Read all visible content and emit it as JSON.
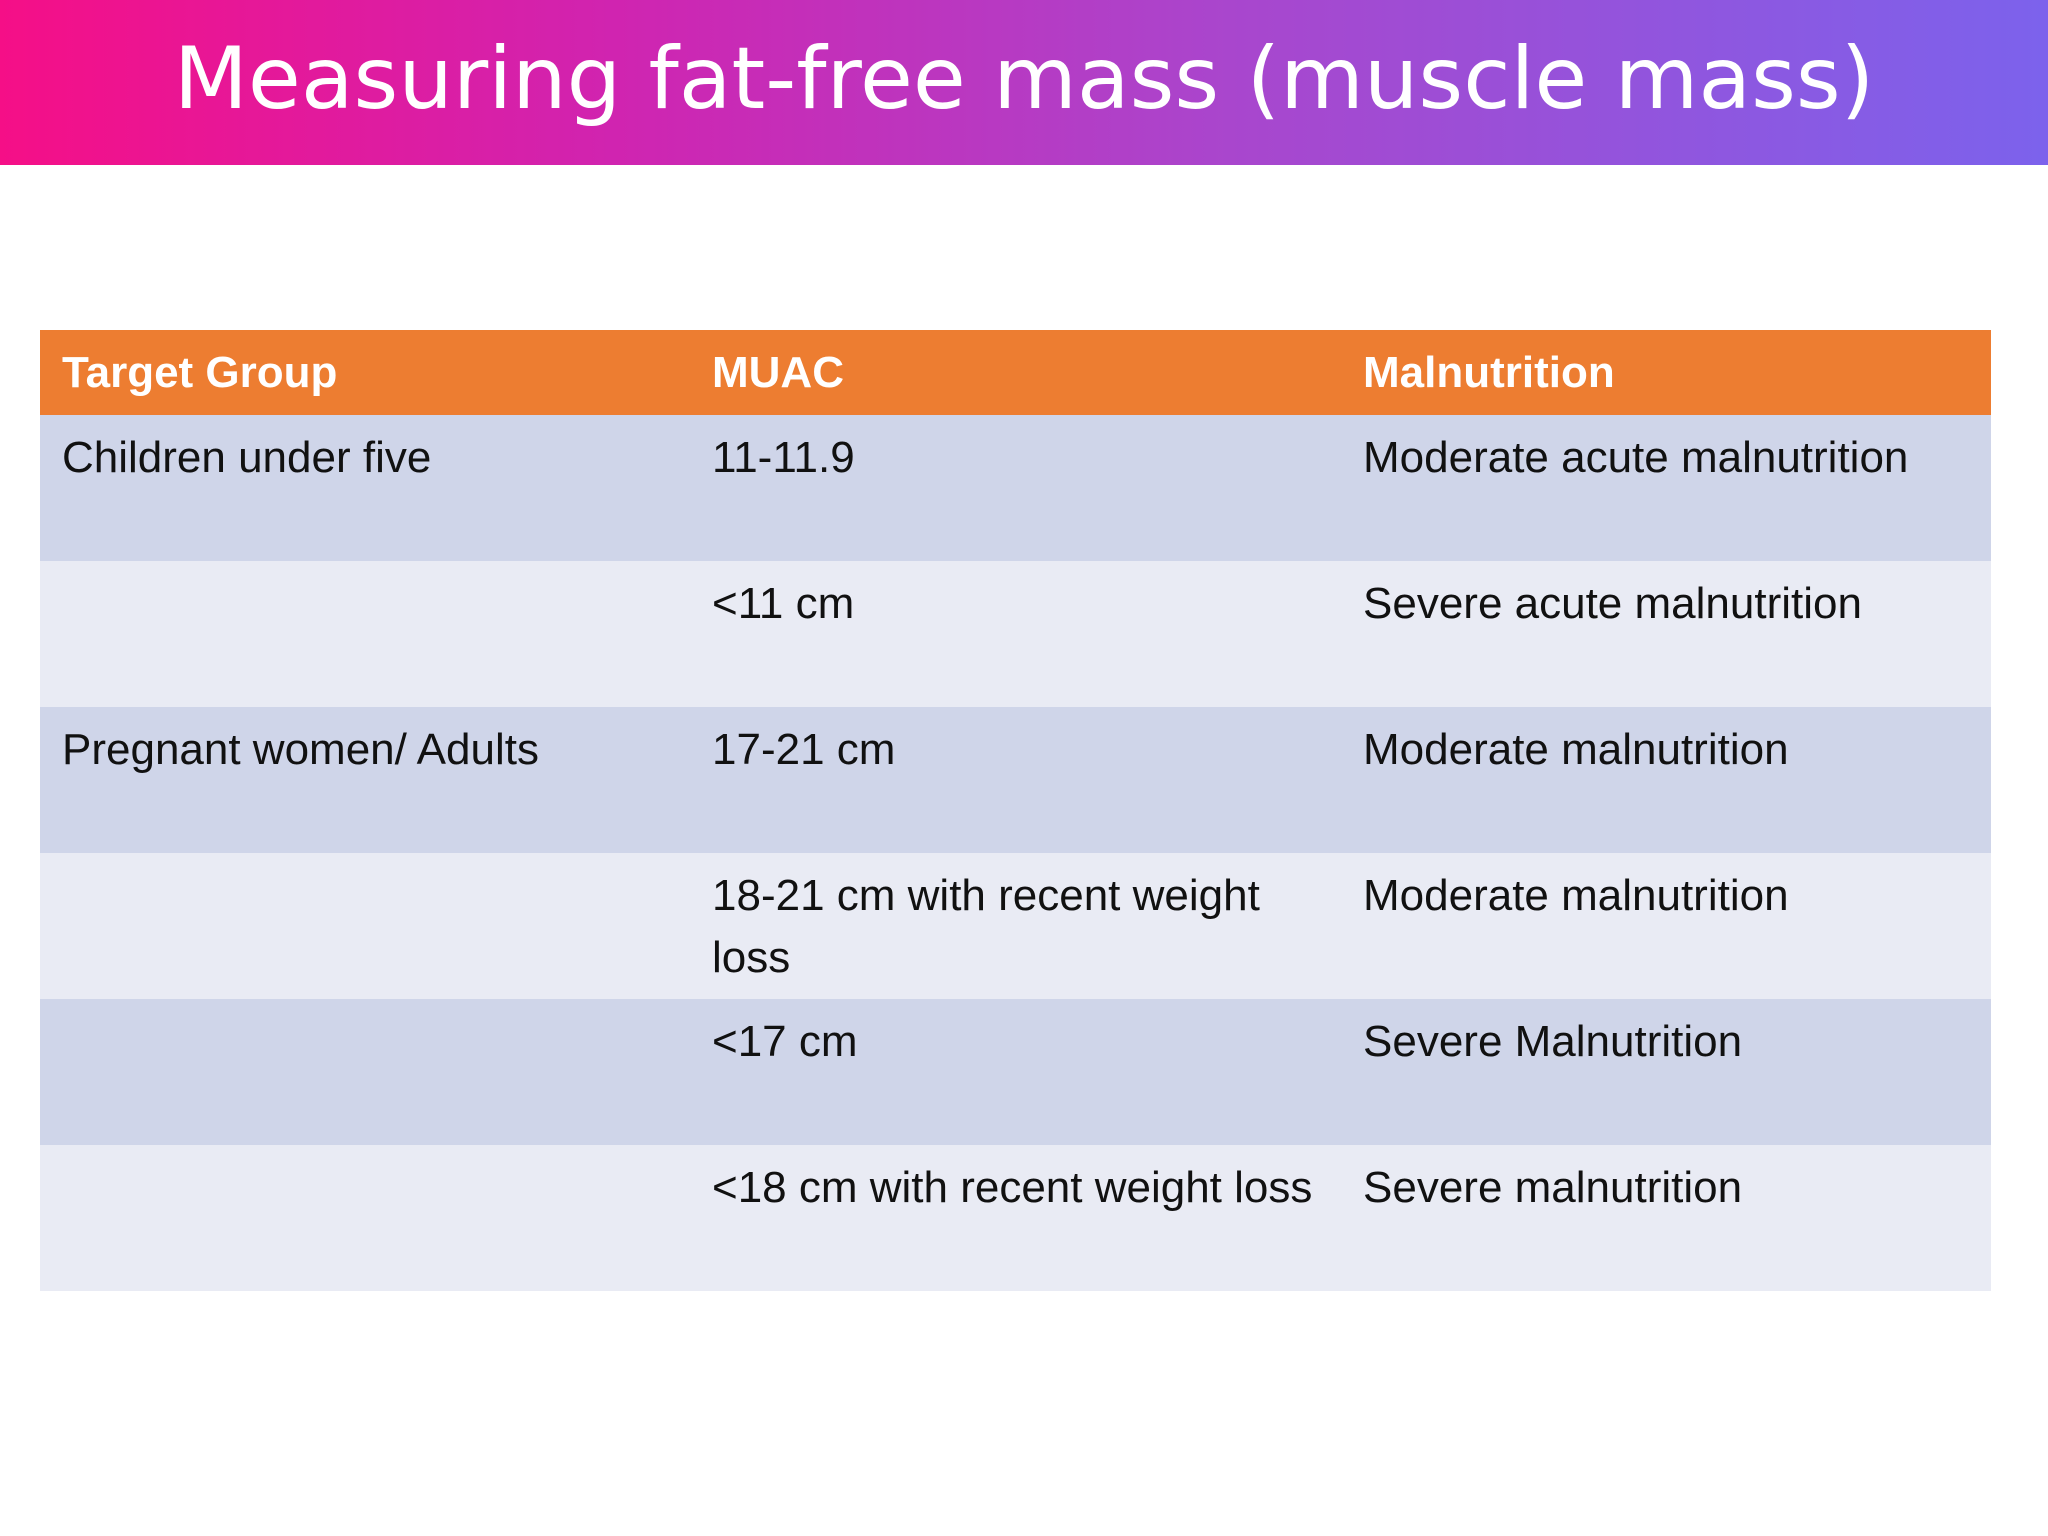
{
  "slide": {
    "title": "Measuring fat-free mass (muscle mass)"
  },
  "table": {
    "headers": {
      "target_group": "Target Group",
      "muac": "MUAC",
      "malnutrition": "Malnutrition"
    },
    "rows": [
      {
        "target_group": "Children under five",
        "muac": "11-11.9",
        "malnutrition": "Moderate acute malnutrition"
      },
      {
        "target_group": "",
        "muac": "<11 cm",
        "malnutrition": "Severe acute malnutrition"
      },
      {
        "target_group": "Pregnant women/ Adults",
        "muac": "17-21 cm",
        "malnutrition": "Moderate malnutrition"
      },
      {
        "target_group": "",
        "muac": "18-21 cm with recent weight loss",
        "malnutrition": "Moderate malnutrition"
      },
      {
        "target_group": "",
        "muac": "<17 cm",
        "malnutrition": "Severe Malnutrition"
      },
      {
        "target_group": "",
        "muac": "<18 cm with recent weight loss",
        "malnutrition": "Severe malnutrition"
      }
    ]
  },
  "colors": {
    "header_bg": "#ed7d31",
    "row_odd_bg": "#cfd5e9",
    "row_even_bg": "#e9ebf4",
    "banner_start": "#f50f87",
    "banner_end": "#7c62ec"
  }
}
